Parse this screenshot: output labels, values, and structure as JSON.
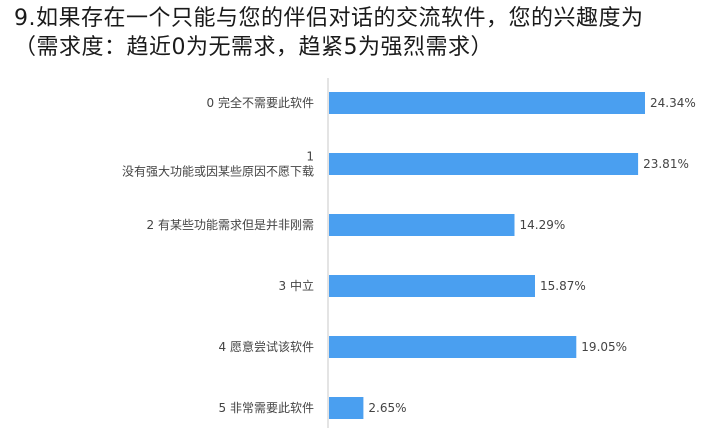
{
  "question": {
    "line1": "9.如果存在一个只能与您的伴侣对话的交流软件，您的兴趣度为",
    "line2": "（需求度：趋近0为无需求，趋紧5为强烈需求）"
  },
  "colors": {
    "bar": "#4a9ff0",
    "axis": "#c8c8c8",
    "text": "#444444"
  },
  "chart_data": {
    "type": "bar",
    "orientation": "horizontal",
    "title": "9.如果存在一个只能与您的伴侣对话的交流软件，您的兴趣度为（需求度：趋近0为无需求，趋紧5为强烈需求）",
    "xlim": [
      0,
      24.34
    ],
    "grid": false,
    "categories": [
      [
        "0 完全不需要此软件"
      ],
      [
        "1",
        "没有强大功能或因某些原因不愿下载"
      ],
      [
        "2 有某些功能需求但是并非刚需"
      ],
      [
        "3 中立"
      ],
      [
        "4 愿意尝试该软件"
      ],
      [
        "5 非常需要此软件"
      ]
    ],
    "values": [
      24.34,
      23.81,
      14.29,
      15.87,
      19.05,
      2.65
    ],
    "value_labels": [
      "24.34%",
      "23.81%",
      "14.29%",
      "15.87%",
      "19.05%",
      "2.65%"
    ]
  }
}
